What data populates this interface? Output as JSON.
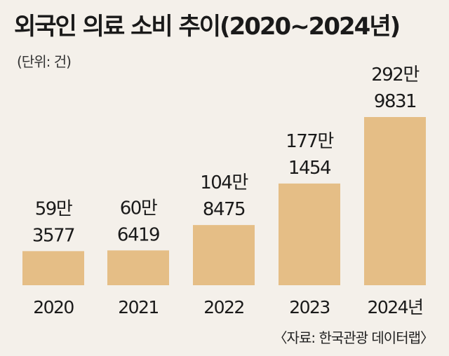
{
  "title": "외국인 의료 소비 추이(2020~2024년)",
  "unit": "(단위: 건)",
  "source": "〈자료: 한국관광 데이터랩〉",
  "colors": {
    "bar": "#e5be86",
    "text": "#1a1a1a",
    "background": "#f4f0ea"
  },
  "chart_data": {
    "type": "bar",
    "title": "외국인 의료 소비 추이(2020~2024년)",
    "xlabel": "",
    "ylabel": "",
    "grid": false,
    "legend": "none",
    "categories": [
      "2020",
      "2021",
      "2022",
      "2023",
      "2024년"
    ],
    "values": [
      593577,
      606419,
      1048475,
      1771454,
      2929831
    ],
    "value_labels": [
      [
        "59만",
        "3577"
      ],
      [
        "60만",
        "6419"
      ],
      [
        "104만",
        "8475"
      ],
      [
        "177만",
        "1454"
      ],
      [
        "292만",
        "9831"
      ]
    ],
    "ylim": [
      0,
      2929831
    ]
  }
}
